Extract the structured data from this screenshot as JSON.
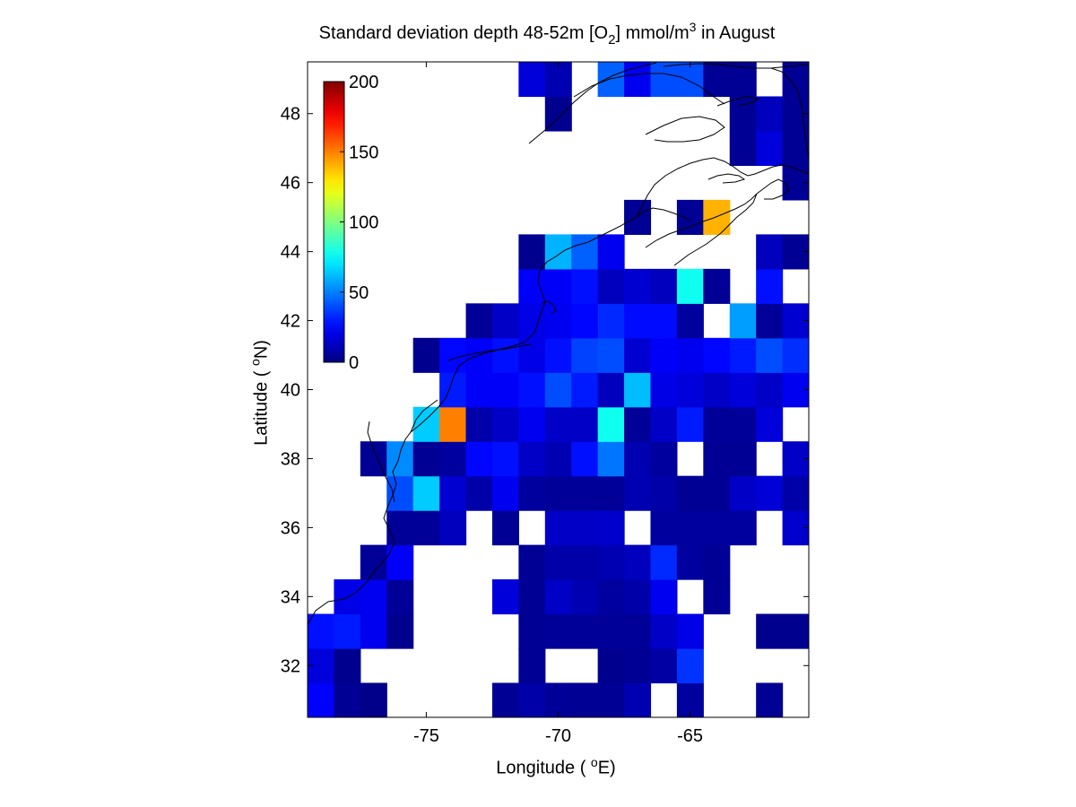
{
  "title": {
    "prefix": "Standard deviation depth 48-52m [O",
    "sub": "2",
    "middle": "] mmol/m",
    "sup": "3",
    "suffix": " in August"
  },
  "xlabel": {
    "prefix": "Longitude ( ",
    "sup": "o",
    "suffix": "E)"
  },
  "ylabel": {
    "prefix": "Latitude ( ",
    "sup": "o",
    "suffix": "N)"
  },
  "colorbar": {
    "min": 0,
    "max": 200,
    "ticks": [
      0,
      50,
      100,
      150,
      200
    ],
    "colormap": "jet"
  },
  "chart_data": {
    "type": "heatmap",
    "title": "Standard deviation depth 48-52m [O2] mmol/m3 in August",
    "xlabel": "Longitude ( oE)",
    "ylabel": "Latitude ( oN)",
    "xlim": [
      -79.5,
      -60.5
    ],
    "ylim": [
      30.5,
      49.5
    ],
    "xticks": [
      -75,
      -70,
      -65
    ],
    "yticks": [
      32,
      34,
      36,
      38,
      40,
      42,
      44,
      46,
      48
    ],
    "cell_size_deg": 1,
    "vmin": 0,
    "vmax": 200,
    "cells": [
      {
        "lon": -79,
        "lat": 31,
        "v": 25
      },
      {
        "lon": -78,
        "lat": 31,
        "v": 4
      },
      {
        "lon": -77,
        "lat": 31,
        "v": 2
      },
      {
        "lon": -72,
        "lat": 31,
        "v": 4
      },
      {
        "lon": -71,
        "lat": 31,
        "v": 8
      },
      {
        "lon": -70,
        "lat": 31,
        "v": 5
      },
      {
        "lon": -69,
        "lat": 31,
        "v": 4
      },
      {
        "lon": -68,
        "lat": 31,
        "v": 4
      },
      {
        "lon": -67,
        "lat": 31,
        "v": 10
      },
      {
        "lon": -65,
        "lat": 31,
        "v": 6
      },
      {
        "lon": -62,
        "lat": 31,
        "v": 4
      },
      {
        "lon": -79,
        "lat": 32,
        "v": 18
      },
      {
        "lon": -78,
        "lat": 32,
        "v": 3
      },
      {
        "lon": -71,
        "lat": 32,
        "v": 4
      },
      {
        "lon": -68,
        "lat": 32,
        "v": 3
      },
      {
        "lon": -67,
        "lat": 32,
        "v": 4
      },
      {
        "lon": -66,
        "lat": 32,
        "v": 7
      },
      {
        "lon": -65,
        "lat": 32,
        "v": 35
      },
      {
        "lon": -79,
        "lat": 33,
        "v": 28
      },
      {
        "lon": -78,
        "lat": 33,
        "v": 30
      },
      {
        "lon": -77,
        "lat": 33,
        "v": 22
      },
      {
        "lon": -76,
        "lat": 33,
        "v": 3
      },
      {
        "lon": -71,
        "lat": 33,
        "v": 4
      },
      {
        "lon": -70,
        "lat": 33,
        "v": 5
      },
      {
        "lon": -69,
        "lat": 33,
        "v": 5
      },
      {
        "lon": -68,
        "lat": 33,
        "v": 5
      },
      {
        "lon": -67,
        "lat": 33,
        "v": 5
      },
      {
        "lon": -66,
        "lat": 33,
        "v": 14
      },
      {
        "lon": -65,
        "lat": 33,
        "v": 20
      },
      {
        "lon": -62,
        "lat": 33,
        "v": 3
      },
      {
        "lon": -61,
        "lat": 33,
        "v": 3
      },
      {
        "lon": -78,
        "lat": 34,
        "v": 20
      },
      {
        "lon": -77,
        "lat": 34,
        "v": 22
      },
      {
        "lon": -76,
        "lat": 34,
        "v": 5
      },
      {
        "lon": -72,
        "lat": 34,
        "v": 18
      },
      {
        "lon": -71,
        "lat": 34,
        "v": 4
      },
      {
        "lon": -70,
        "lat": 34,
        "v": 14
      },
      {
        "lon": -69,
        "lat": 34,
        "v": 10
      },
      {
        "lon": -68,
        "lat": 34,
        "v": 6
      },
      {
        "lon": -67,
        "lat": 34,
        "v": 8
      },
      {
        "lon": -66,
        "lat": 34,
        "v": 22
      },
      {
        "lon": -64,
        "lat": 34,
        "v": 4
      },
      {
        "lon": -77,
        "lat": 35,
        "v": 5
      },
      {
        "lon": -76,
        "lat": 35,
        "v": 24
      },
      {
        "lon": -71,
        "lat": 35,
        "v": 4
      },
      {
        "lon": -70,
        "lat": 35,
        "v": 8
      },
      {
        "lon": -69,
        "lat": 35,
        "v": 8
      },
      {
        "lon": -68,
        "lat": 35,
        "v": 10
      },
      {
        "lon": -67,
        "lat": 35,
        "v": 12
      },
      {
        "lon": -66,
        "lat": 35,
        "v": 33
      },
      {
        "lon": -65,
        "lat": 35,
        "v": 6
      },
      {
        "lon": -64,
        "lat": 35,
        "v": 4
      },
      {
        "lon": -76,
        "lat": 36,
        "v": 5
      },
      {
        "lon": -75,
        "lat": 36,
        "v": 5
      },
      {
        "lon": -74,
        "lat": 36,
        "v": 12
      },
      {
        "lon": -72,
        "lat": 36,
        "v": 4
      },
      {
        "lon": -70,
        "lat": 36,
        "v": 14
      },
      {
        "lon": -69,
        "lat": 36,
        "v": 14
      },
      {
        "lon": -68,
        "lat": 36,
        "v": 15
      },
      {
        "lon": -66,
        "lat": 36,
        "v": 6
      },
      {
        "lon": -65,
        "lat": 36,
        "v": 6
      },
      {
        "lon": -64,
        "lat": 36,
        "v": 6
      },
      {
        "lon": -63,
        "lat": 36,
        "v": 6
      },
      {
        "lon": -61,
        "lat": 36,
        "v": 15
      },
      {
        "lon": -76,
        "lat": 37,
        "v": 40
      },
      {
        "lon": -75,
        "lat": 37,
        "v": 65
      },
      {
        "lon": -74,
        "lat": 37,
        "v": 16
      },
      {
        "lon": -73,
        "lat": 37,
        "v": 8
      },
      {
        "lon": -72,
        "lat": 37,
        "v": 22
      },
      {
        "lon": -71,
        "lat": 37,
        "v": 6
      },
      {
        "lon": -70,
        "lat": 37,
        "v": 5
      },
      {
        "lon": -69,
        "lat": 37,
        "v": 5
      },
      {
        "lon": -68,
        "lat": 37,
        "v": 5
      },
      {
        "lon": -67,
        "lat": 37,
        "v": 10
      },
      {
        "lon": -66,
        "lat": 37,
        "v": 8
      },
      {
        "lon": -65,
        "lat": 37,
        "v": 4
      },
      {
        "lon": -64,
        "lat": 37,
        "v": 4
      },
      {
        "lon": -63,
        "lat": 37,
        "v": 14
      },
      {
        "lon": -62,
        "lat": 37,
        "v": 17
      },
      {
        "lon": -61,
        "lat": 37,
        "v": 8
      },
      {
        "lon": -77,
        "lat": 38,
        "v": 4
      },
      {
        "lon": -76,
        "lat": 38,
        "v": 52
      },
      {
        "lon": -75,
        "lat": 38,
        "v": 4
      },
      {
        "lon": -74,
        "lat": 38,
        "v": 6
      },
      {
        "lon": -73,
        "lat": 38,
        "v": 26
      },
      {
        "lon": -72,
        "lat": 38,
        "v": 28
      },
      {
        "lon": -71,
        "lat": 38,
        "v": 14
      },
      {
        "lon": -70,
        "lat": 38,
        "v": 10
      },
      {
        "lon": -69,
        "lat": 38,
        "v": 28
      },
      {
        "lon": -68,
        "lat": 38,
        "v": 48
      },
      {
        "lon": -67,
        "lat": 38,
        "v": 10
      },
      {
        "lon": -66,
        "lat": 38,
        "v": 6
      },
      {
        "lon": -64,
        "lat": 38,
        "v": 4
      },
      {
        "lon": -63,
        "lat": 38,
        "v": 4
      },
      {
        "lon": -61,
        "lat": 38,
        "v": 14
      },
      {
        "lon": -75,
        "lat": 39,
        "v": 65
      },
      {
        "lon": -74,
        "lat": 39,
        "v": 150
      },
      {
        "lon": -73,
        "lat": 39,
        "v": 8
      },
      {
        "lon": -72,
        "lat": 39,
        "v": 14
      },
      {
        "lon": -71,
        "lat": 39,
        "v": 22
      },
      {
        "lon": -70,
        "lat": 39,
        "v": 14
      },
      {
        "lon": -69,
        "lat": 39,
        "v": 14
      },
      {
        "lon": -68,
        "lat": 39,
        "v": 78
      },
      {
        "lon": -67,
        "lat": 39,
        "v": 5
      },
      {
        "lon": -66,
        "lat": 39,
        "v": 14
      },
      {
        "lon": -65,
        "lat": 39,
        "v": 30
      },
      {
        "lon": -64,
        "lat": 39,
        "v": 5
      },
      {
        "lon": -63,
        "lat": 39,
        "v": 5
      },
      {
        "lon": -62,
        "lat": 39,
        "v": 18
      },
      {
        "lon": -74,
        "lat": 40,
        "v": 30
      },
      {
        "lon": -73,
        "lat": 40,
        "v": 24
      },
      {
        "lon": -72,
        "lat": 40,
        "v": 24
      },
      {
        "lon": -71,
        "lat": 40,
        "v": 28
      },
      {
        "lon": -70,
        "lat": 40,
        "v": 40
      },
      {
        "lon": -69,
        "lat": 40,
        "v": 30
      },
      {
        "lon": -68,
        "lat": 40,
        "v": 12
      },
      {
        "lon": -67,
        "lat": 40,
        "v": 62
      },
      {
        "lon": -66,
        "lat": 40,
        "v": 20
      },
      {
        "lon": -65,
        "lat": 40,
        "v": 18
      },
      {
        "lon": -64,
        "lat": 40,
        "v": 14
      },
      {
        "lon": -63,
        "lat": 40,
        "v": 18
      },
      {
        "lon": -62,
        "lat": 40,
        "v": 14
      },
      {
        "lon": -61,
        "lat": 40,
        "v": 22
      },
      {
        "lon": -75,
        "lat": 41,
        "v": 3
      },
      {
        "lon": -74,
        "lat": 41,
        "v": 26
      },
      {
        "lon": -73,
        "lat": 41,
        "v": 24
      },
      {
        "lon": -72,
        "lat": 41,
        "v": 28
      },
      {
        "lon": -71,
        "lat": 41,
        "v": 20
      },
      {
        "lon": -70,
        "lat": 41,
        "v": 28
      },
      {
        "lon": -69,
        "lat": 41,
        "v": 38
      },
      {
        "lon": -68,
        "lat": 41,
        "v": 40
      },
      {
        "lon": -67,
        "lat": 41,
        "v": 16
      },
      {
        "lon": -66,
        "lat": 41,
        "v": 24
      },
      {
        "lon": -65,
        "lat": 41,
        "v": 22
      },
      {
        "lon": -64,
        "lat": 41,
        "v": 26
      },
      {
        "lon": -63,
        "lat": 41,
        "v": 30
      },
      {
        "lon": -62,
        "lat": 41,
        "v": 40
      },
      {
        "lon": -61,
        "lat": 41,
        "v": 34
      },
      {
        "lon": -73,
        "lat": 42,
        "v": 5
      },
      {
        "lon": -72,
        "lat": 42,
        "v": 14
      },
      {
        "lon": -71,
        "lat": 42,
        "v": 20
      },
      {
        "lon": -70,
        "lat": 42,
        "v": 22
      },
      {
        "lon": -69,
        "lat": 42,
        "v": 26
      },
      {
        "lon": -68,
        "lat": 42,
        "v": 33
      },
      {
        "lon": -67,
        "lat": 42,
        "v": 27
      },
      {
        "lon": -66,
        "lat": 42,
        "v": 27
      },
      {
        "lon": -65,
        "lat": 42,
        "v": 6
      },
      {
        "lon": -63,
        "lat": 42,
        "v": 56
      },
      {
        "lon": -62,
        "lat": 42,
        "v": 5
      },
      {
        "lon": -61,
        "lat": 42,
        "v": 16
      },
      {
        "lon": -71,
        "lat": 43,
        "v": 24
      },
      {
        "lon": -70,
        "lat": 43,
        "v": 24
      },
      {
        "lon": -69,
        "lat": 43,
        "v": 28
      },
      {
        "lon": -68,
        "lat": 43,
        "v": 12
      },
      {
        "lon": -67,
        "lat": 43,
        "v": 16
      },
      {
        "lon": -66,
        "lat": 43,
        "v": 12
      },
      {
        "lon": -65,
        "lat": 43,
        "v": 78
      },
      {
        "lon": -64,
        "lat": 43,
        "v": 4
      },
      {
        "lon": -62,
        "lat": 43,
        "v": 28
      },
      {
        "lon": -71,
        "lat": 44,
        "v": 3
      },
      {
        "lon": -70,
        "lat": 44,
        "v": 60
      },
      {
        "lon": -69,
        "lat": 44,
        "v": 44
      },
      {
        "lon": -68,
        "lat": 44,
        "v": 22
      },
      {
        "lon": -62,
        "lat": 44,
        "v": 12
      },
      {
        "lon": -61,
        "lat": 44,
        "v": 4
      },
      {
        "lon": -67,
        "lat": 45,
        "v": 4
      },
      {
        "lon": -65,
        "lat": 45,
        "v": 4
      },
      {
        "lon": -64,
        "lat": 45,
        "v": 140
      },
      {
        "lon": -61,
        "lat": 46,
        "v": 4
      },
      {
        "lon": -63,
        "lat": 47,
        "v": 4
      },
      {
        "lon": -62,
        "lat": 47,
        "v": 18
      },
      {
        "lon": -61,
        "lat": 47,
        "v": 4
      },
      {
        "lon": -70,
        "lat": 48,
        "v": 3
      },
      {
        "lon": -63,
        "lat": 48,
        "v": 4
      },
      {
        "lon": -62,
        "lat": 48,
        "v": 12
      },
      {
        "lon": -61,
        "lat": 48,
        "v": 4
      },
      {
        "lon": -71,
        "lat": 49,
        "v": 18
      },
      {
        "lon": -70,
        "lat": 49,
        "v": 10
      },
      {
        "lon": -68,
        "lat": 49,
        "v": 44
      },
      {
        "lon": -67,
        "lat": 49,
        "v": 22
      },
      {
        "lon": -66,
        "lat": 49,
        "v": 40
      },
      {
        "lon": -65,
        "lat": 49,
        "v": 40
      },
      {
        "lon": -64,
        "lat": 49,
        "v": 4
      },
      {
        "lon": -63,
        "lat": 49,
        "v": 4
      },
      {
        "lon": -61,
        "lat": 49,
        "v": 4
      }
    ]
  }
}
